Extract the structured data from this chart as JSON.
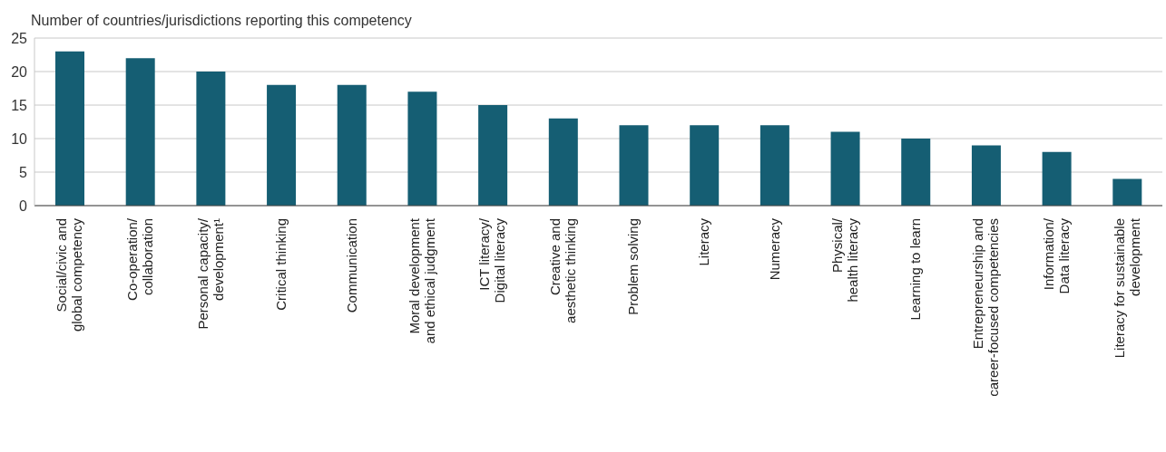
{
  "chart_data": {
    "type": "bar",
    "ylabel": "Number of countries/jurisdictions reporting this competency",
    "categories": [
      "Social/civic and\nglobal competency",
      "Co-operation/\ncollaboration",
      "Personal capacity/\ndevelopment¹",
      "Critical thinking",
      "Communication",
      "Moral development\nand ethical judgment",
      "ICT literacy/\nDigital literacy",
      "Creative and\naesthetic thinking",
      "Problem solving",
      "Literacy",
      "Numeracy",
      "Physical/\nhealth literacy",
      "Learning to learn",
      "Entrepreneurship and\ncareer-focused competencies",
      "Information/\nData literacy",
      "Literacy for sustainable\ndevelopment"
    ],
    "values": [
      23,
      22,
      20,
      18,
      18,
      17,
      15,
      13,
      12,
      12,
      12,
      11,
      10,
      9,
      8,
      4
    ],
    "color": "#155e73",
    "ylim": [
      0,
      25
    ],
    "yticks": [
      0,
      5,
      10,
      15,
      20,
      25
    ],
    "grid": "y",
    "legend": false
  }
}
